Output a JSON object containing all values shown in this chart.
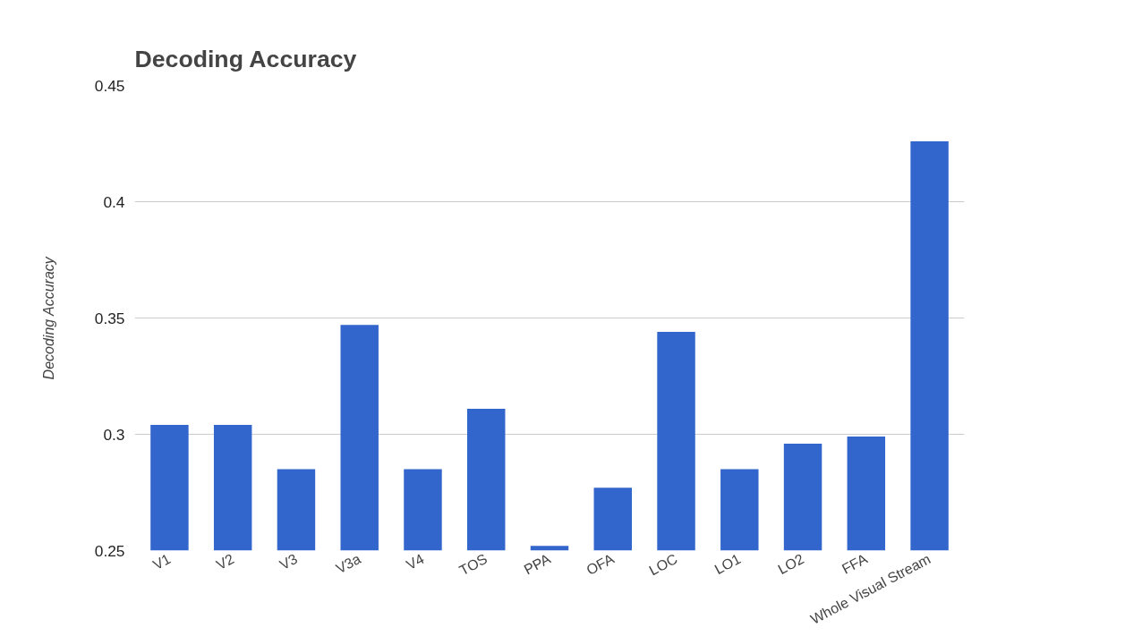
{
  "chart_data": {
    "type": "bar",
    "title": "Decoding Accuracy",
    "ylabel": "Decoding Accuracy",
    "categories": [
      "V1",
      "V2",
      "V3",
      "V3a",
      "V4",
      "TOS",
      "PPA",
      "OFA",
      "LOC",
      "LO1",
      "LO2",
      "FFA",
      "Whole Visual Stream"
    ],
    "values": [
      0.304,
      0.304,
      0.285,
      0.347,
      0.285,
      0.311,
      0.252,
      0.277,
      0.344,
      0.285,
      0.296,
      0.299,
      0.426
    ],
    "color": "#3366cc",
    "ylim": [
      0.25,
      0.45
    ],
    "yticks": [
      0.25,
      0.3,
      0.35,
      0.4,
      0.45
    ],
    "grid": "y"
  }
}
